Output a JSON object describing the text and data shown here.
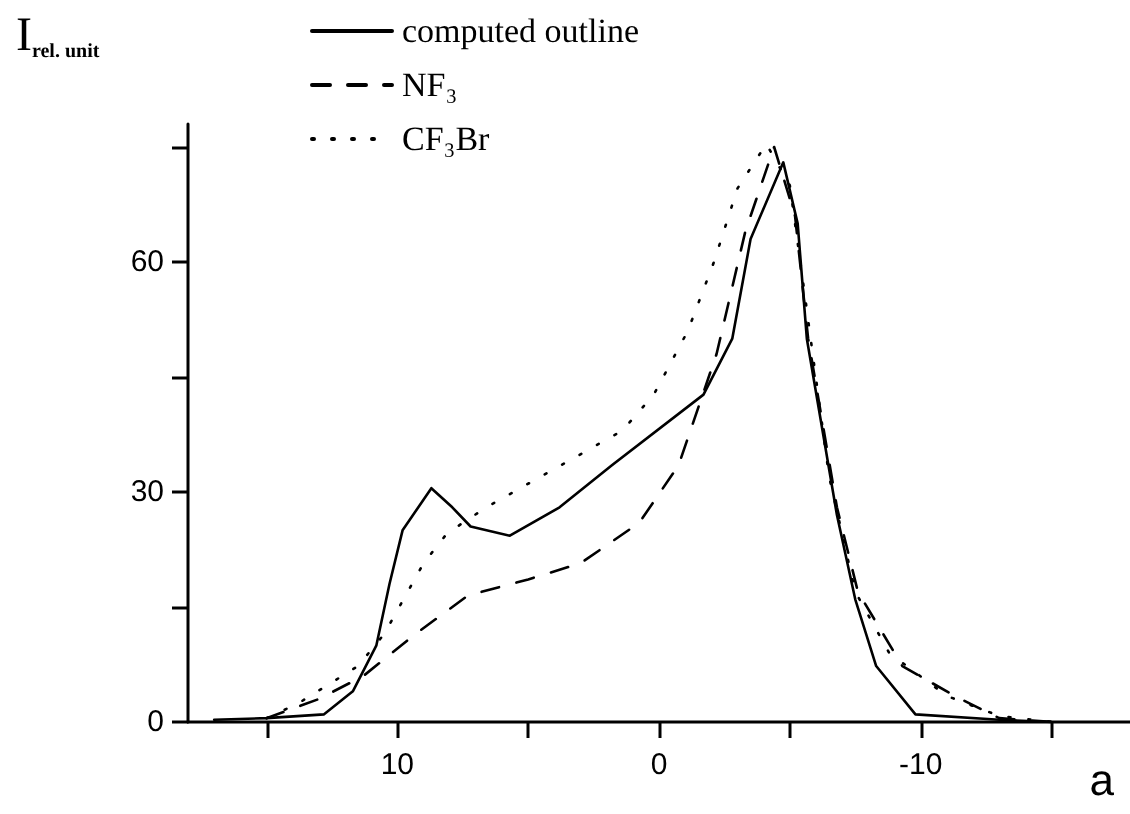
{
  "chart_data": {
    "type": "line",
    "xlabel": "a",
    "ylabel": "I$_{rel. unit}$",
    "xlim": [
      18,
      -18
    ],
    "xticks": [
      {
        "value": 15,
        "label": null
      },
      10,
      {
        "value": 5,
        "label": null
      },
      0,
      {
        "value": -5,
        "label": null
      },
      -10,
      {
        "value": -15,
        "label": null
      }
    ],
    "ylim": [
      0,
      78
    ],
    "yticks": [
      0,
      {
        "value": 15,
        "label": null
      },
      30,
      {
        "value": 45,
        "label": null
      },
      60,
      {
        "value": 75,
        "label": null
      }
    ],
    "grid": false,
    "legend": "top",
    "marker": "none",
    "series": [
      {
        "name": "computed outline",
        "color": "#000000",
        "line_style": "solid",
        "x": [
          17,
          15,
          12.8,
          11.7,
          10.8,
          10.3,
          9.8,
          8.7,
          7.9,
          7.2,
          5.7,
          3.8,
          1.8,
          -1.7,
          -2.8,
          -3.5,
          -4.75,
          -5.3,
          -5.65,
          -6.8,
          -7.5,
          -8.3,
          -9.8,
          -13,
          -15
        ],
        "values": [
          0.3,
          0.5,
          1,
          4,
          10,
          18,
          25,
          30.5,
          28,
          25.5,
          24.3,
          28,
          33.5,
          42.7,
          50,
          63,
          73,
          65,
          50,
          27,
          16,
          7.3,
          1,
          0.3,
          0
        ]
      },
      {
        "name": "NF₃",
        "color": "#000000",
        "line_style": "dashed",
        "x": [
          15,
          13,
          11.3,
          9.3,
          7.3,
          5,
          3,
          0.75,
          -0.75,
          -2.2,
          -3.3,
          -4.4,
          -5.2,
          -5.7,
          -6.8,
          -7.6,
          -9.3,
          -11.3,
          -13,
          -15
        ],
        "values": [
          0.5,
          3,
          6,
          11.5,
          16.5,
          18.6,
          20.7,
          26,
          33.5,
          48,
          64,
          75,
          66,
          50,
          28,
          17,
          7.3,
          3.4,
          0.5,
          0
        ]
      },
      {
        "name": "CF₃Br",
        "color": "#000000",
        "line_style": "dotted",
        "x": [
          15,
          13.8,
          11.5,
          10.5,
          9,
          8.1,
          6.6,
          4,
          1.4,
          0.2,
          -1.1,
          -2.1,
          -3,
          -4.1,
          -5,
          -5.6,
          -6.5,
          -7.5,
          -8.8,
          -11,
          -13,
          -15
        ],
        "values": [
          0.5,
          2.4,
          7.3,
          11.5,
          20.7,
          24.6,
          28,
          33,
          38,
          42.7,
          51,
          60,
          69.6,
          75.4,
          70,
          55,
          32,
          17,
          9,
          3.4,
          0.8,
          0
        ]
      }
    ]
  }
}
